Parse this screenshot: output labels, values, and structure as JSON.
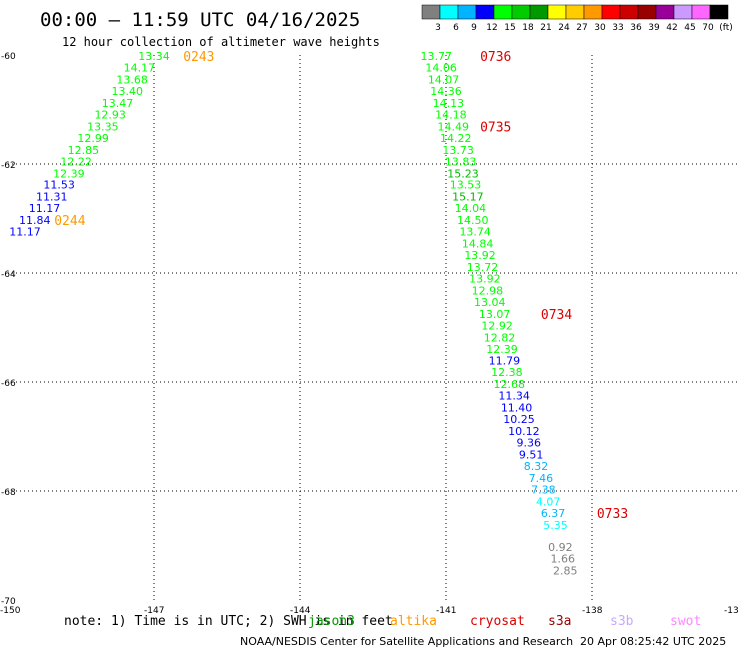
{
  "title": "00:00 – 11:59 UTC 04/16/2025",
  "subtitle": "12 hour collection of altimeter wave heights",
  "colorbar": {
    "colors": [
      "#808080",
      "#00ffff",
      "#00b4ff",
      "#0000ff",
      "#00ff00",
      "#00cc00",
      "#009900",
      "#ffff00",
      "#ffcc00",
      "#ff9900",
      "#ff0000",
      "#cc0000",
      "#990000",
      "#990099",
      "#cc99ff",
      "#ff66ff",
      "#000000"
    ],
    "labels": [
      "3",
      "6",
      "9",
      "12",
      "15",
      "18",
      "21",
      "24",
      "27",
      "30",
      "33",
      "36",
      "39",
      "42",
      "45",
      "70",
      "(ft)"
    ]
  },
  "note": "note: 1) Time is in UTC; 2) SWH is in feet",
  "satellites": [
    {
      "name": "jason3",
      "color": "#009900"
    },
    {
      "name": "altika",
      "color": "#ff9900"
    },
    {
      "name": "cryosat",
      "color": "#dd0000"
    },
    {
      "name": "s3a",
      "color": "#990000"
    },
    {
      "name": "s3b",
      "color": "#c8a8ff"
    },
    {
      "name": "swot",
      "color": "#ff88ff"
    }
  ],
  "credit": "NOAA/NESDIS Center for Satellite Applications and Research",
  "timestamp": "20 Apr 08:25:42 UTC 2025",
  "chart_data": {
    "type": "scatter",
    "xlim": [
      -150,
      -135
    ],
    "ylim": [
      -70,
      -60
    ],
    "x_ticks": [
      "-150",
      "-147",
      "-144",
      "-141",
      "-138",
      "-13"
    ],
    "y_ticks": [
      "-60",
      "-62",
      "-64",
      "-66",
      "-68",
      "-70"
    ],
    "grid": true,
    "points": [
      {
        "lon": -147.0,
        "lat": -60.02,
        "v": "13.34",
        "c": "#00ff00"
      },
      {
        "lon": -147.3,
        "lat": -60.23,
        "v": "14.17",
        "c": "#00ff00"
      },
      {
        "lon": -147.45,
        "lat": -60.45,
        "v": "13.68",
        "c": "#00ff00"
      },
      {
        "lon": -147.55,
        "lat": -60.66,
        "v": "13.40",
        "c": "#00ff00"
      },
      {
        "lon": -147.75,
        "lat": -60.88,
        "v": "13.47",
        "c": "#00ff00"
      },
      {
        "lon": -147.9,
        "lat": -61.09,
        "v": "12.93",
        "c": "#00ff00"
      },
      {
        "lon": -148.05,
        "lat": -61.31,
        "v": "13.35",
        "c": "#00ff00"
      },
      {
        "lon": -148.25,
        "lat": -61.52,
        "v": "12.99",
        "c": "#00ff00"
      },
      {
        "lon": -148.45,
        "lat": -61.74,
        "v": "12.85",
        "c": "#00ff00"
      },
      {
        "lon": -148.6,
        "lat": -61.95,
        "v": "12.22",
        "c": "#00ff00"
      },
      {
        "lon": -148.75,
        "lat": -62.17,
        "v": "12.39",
        "c": "#00ff00"
      },
      {
        "lon": -148.95,
        "lat": -62.38,
        "v": "11.53",
        "c": "#0000ff"
      },
      {
        "lon": -149.1,
        "lat": -62.6,
        "v": "11.31",
        "c": "#0000ff"
      },
      {
        "lon": -149.25,
        "lat": -62.81,
        "v": "11.17",
        "c": "#0000ff"
      },
      {
        "lon": -149.45,
        "lat": -63.03,
        "v": "11.84",
        "c": "#0000ff"
      },
      {
        "lon": -149.65,
        "lat": -63.24,
        "v": "11.17",
        "c": "#0000ff"
      },
      {
        "lon": -141.2,
        "lat": -60.02,
        "v": "13.77",
        "c": "#00ff00"
      },
      {
        "lon": -141.1,
        "lat": -60.23,
        "v": "14.06",
        "c": "#00ff00"
      },
      {
        "lon": -141.05,
        "lat": -60.45,
        "v": "14.07",
        "c": "#00ff00"
      },
      {
        "lon": -141.0,
        "lat": -60.66,
        "v": "14.36",
        "c": "#00ff00"
      },
      {
        "lon": -140.95,
        "lat": -60.88,
        "v": "14.13",
        "c": "#00ff00"
      },
      {
        "lon": -140.9,
        "lat": -61.09,
        "v": "14.18",
        "c": "#00ff00"
      },
      {
        "lon": -140.85,
        "lat": -61.31,
        "v": "14.49",
        "c": "#00ff00"
      },
      {
        "lon": -140.8,
        "lat": -61.52,
        "v": "14.22",
        "c": "#00ff00"
      },
      {
        "lon": -140.75,
        "lat": -61.74,
        "v": "13.73",
        "c": "#00ff00"
      },
      {
        "lon": -140.7,
        "lat": -61.95,
        "v": "13.83",
        "c": "#00ff00"
      },
      {
        "lon": -140.65,
        "lat": -62.17,
        "v": "15.23",
        "c": "#00bb00"
      },
      {
        "lon": -140.6,
        "lat": -62.38,
        "v": "13.53",
        "c": "#00ff00"
      },
      {
        "lon": -140.55,
        "lat": -62.6,
        "v": "15.17",
        "c": "#00bb00"
      },
      {
        "lon": -140.5,
        "lat": -62.81,
        "v": "14.04",
        "c": "#00ff00"
      },
      {
        "lon": -140.45,
        "lat": -63.03,
        "v": "14.50",
        "c": "#00ff00"
      },
      {
        "lon": -140.4,
        "lat": -63.24,
        "v": "13.74",
        "c": "#00ff00"
      },
      {
        "lon": -140.35,
        "lat": -63.46,
        "v": "14.84",
        "c": "#00ff00"
      },
      {
        "lon": -140.3,
        "lat": -63.67,
        "v": "13.92",
        "c": "#00ff00"
      },
      {
        "lon": -140.25,
        "lat": -63.89,
        "v": "13.72",
        "c": "#00ff00"
      },
      {
        "lon": -140.2,
        "lat": -64.1,
        "v": "13.92",
        "c": "#00ff00"
      },
      {
        "lon": -140.15,
        "lat": -64.32,
        "v": "12.98",
        "c": "#00ff00"
      },
      {
        "lon": -140.1,
        "lat": -64.53,
        "v": "13.04",
        "c": "#00ff00"
      },
      {
        "lon": -140.0,
        "lat": -64.75,
        "v": "13.07",
        "c": "#00ff00"
      },
      {
        "lon": -139.95,
        "lat": -64.96,
        "v": "12.92",
        "c": "#00ff00"
      },
      {
        "lon": -139.9,
        "lat": -65.18,
        "v": "12.82",
        "c": "#00ff00"
      },
      {
        "lon": -139.85,
        "lat": -65.39,
        "v": "12.39",
        "c": "#00ff00"
      },
      {
        "lon": -139.8,
        "lat": -65.61,
        "v": "11.79",
        "c": "#0000ff"
      },
      {
        "lon": -139.75,
        "lat": -65.82,
        "v": "12.38",
        "c": "#00ff00"
      },
      {
        "lon": -139.7,
        "lat": -66.04,
        "v": "12.68",
        "c": "#00ff00"
      },
      {
        "lon": -139.6,
        "lat": -66.25,
        "v": "11.34",
        "c": "#0000ff"
      },
      {
        "lon": -139.55,
        "lat": -66.47,
        "v": "11.40",
        "c": "#0000ff"
      },
      {
        "lon": -139.5,
        "lat": -66.68,
        "v": "10.25",
        "c": "#0000ff"
      },
      {
        "lon": -139.4,
        "lat": -66.9,
        "v": "10.12",
        "c": "#0000ff"
      },
      {
        "lon": -139.3,
        "lat": -67.11,
        "v": "9.36",
        "c": "#0000ff"
      },
      {
        "lon": -139.25,
        "lat": -67.33,
        "v": "9.51",
        "c": "#0000ff"
      },
      {
        "lon": -139.15,
        "lat": -67.54,
        "v": "8.32",
        "c": "#00b4ff"
      },
      {
        "lon": -139.05,
        "lat": -67.76,
        "v": "7.46",
        "c": "#00b4ff"
      },
      {
        "lon": -139.0,
        "lat": -67.97,
        "v": "7.38",
        "c": "#00b4ff"
      },
      {
        "lon": -138.9,
        "lat": -68.19,
        "v": "4.07",
        "c": "#00ffff"
      },
      {
        "lon": -138.8,
        "lat": -68.4,
        "v": "6.37",
        "c": "#00b4ff"
      },
      {
        "lon": -138.75,
        "lat": -68.62,
        "v": "5.35",
        "c": "#00ffff"
      },
      {
        "lon": -138.65,
        "lat": -69.03,
        "v": "0.92",
        "c": "#808080"
      },
      {
        "lon": -138.6,
        "lat": -69.24,
        "v": "1.66",
        "c": "#808080"
      },
      {
        "lon": -138.55,
        "lat": -69.46,
        "v": "2.85",
        "c": "#808080"
      }
    ],
    "pass_labels": [
      {
        "lon": -146.4,
        "lat": -60.02,
        "text": "0243",
        "c": "#ff9900"
      },
      {
        "lon": -149.05,
        "lat": -63.03,
        "text": "0244",
        "c": "#ff9900"
      },
      {
        "lon": -140.3,
        "lat": -60.02,
        "text": "0736",
        "c": "#dd0000"
      },
      {
        "lon": -140.3,
        "lat": -61.31,
        "text": "0735",
        "c": "#dd0000"
      },
      {
        "lon": -139.05,
        "lat": -64.75,
        "text": "0734",
        "c": "#dd0000"
      },
      {
        "lon": -137.9,
        "lat": -68.4,
        "text": "0733",
        "c": "#dd0000"
      }
    ]
  }
}
